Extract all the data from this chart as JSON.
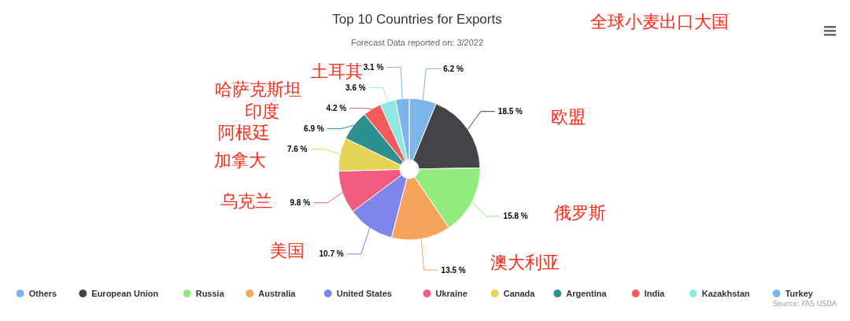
{
  "chart_data": {
    "type": "donut",
    "title": "Top 10 Countries for Exports",
    "subtitle": "Forecast Data reported on: 3/2022",
    "categories": [
      "Others",
      "European Union",
      "Russia",
      "Australia",
      "United States",
      "Ukraine",
      "Canada",
      "Argentina",
      "India",
      "Kazakhstan",
      "Turkey"
    ],
    "values": [
      6.2,
      18.5,
      15.8,
      13.5,
      10.7,
      9.8,
      7.6,
      6.9,
      4.2,
      3.6,
      3.1
    ],
    "value_labels": [
      "6.2 %",
      "18.5 %",
      "15.8 %",
      "13.5 %",
      "10.7 %",
      "9.8 %",
      "7.6 %",
      "6.9 %",
      "4.2 %",
      "3.6 %",
      "3.1 %"
    ],
    "colors": [
      "#7cb5ec",
      "#434348",
      "#90ed7d",
      "#f7a35c",
      "#8085e9",
      "#f15c80",
      "#e4d354",
      "#2b908f",
      "#f45b5b",
      "#91e8e1",
      "#7cb5ec"
    ],
    "legend": "bottom",
    "annotations": [
      "全球小麦出口大国",
      "欧盟",
      "俄罗斯",
      "澳大利亚",
      "美国",
      "乌克兰",
      "加拿大",
      "阿根廷",
      "印度",
      "哈萨克斯坦",
      "土耳其",
      "Source: FAS USDA"
    ]
  }
}
